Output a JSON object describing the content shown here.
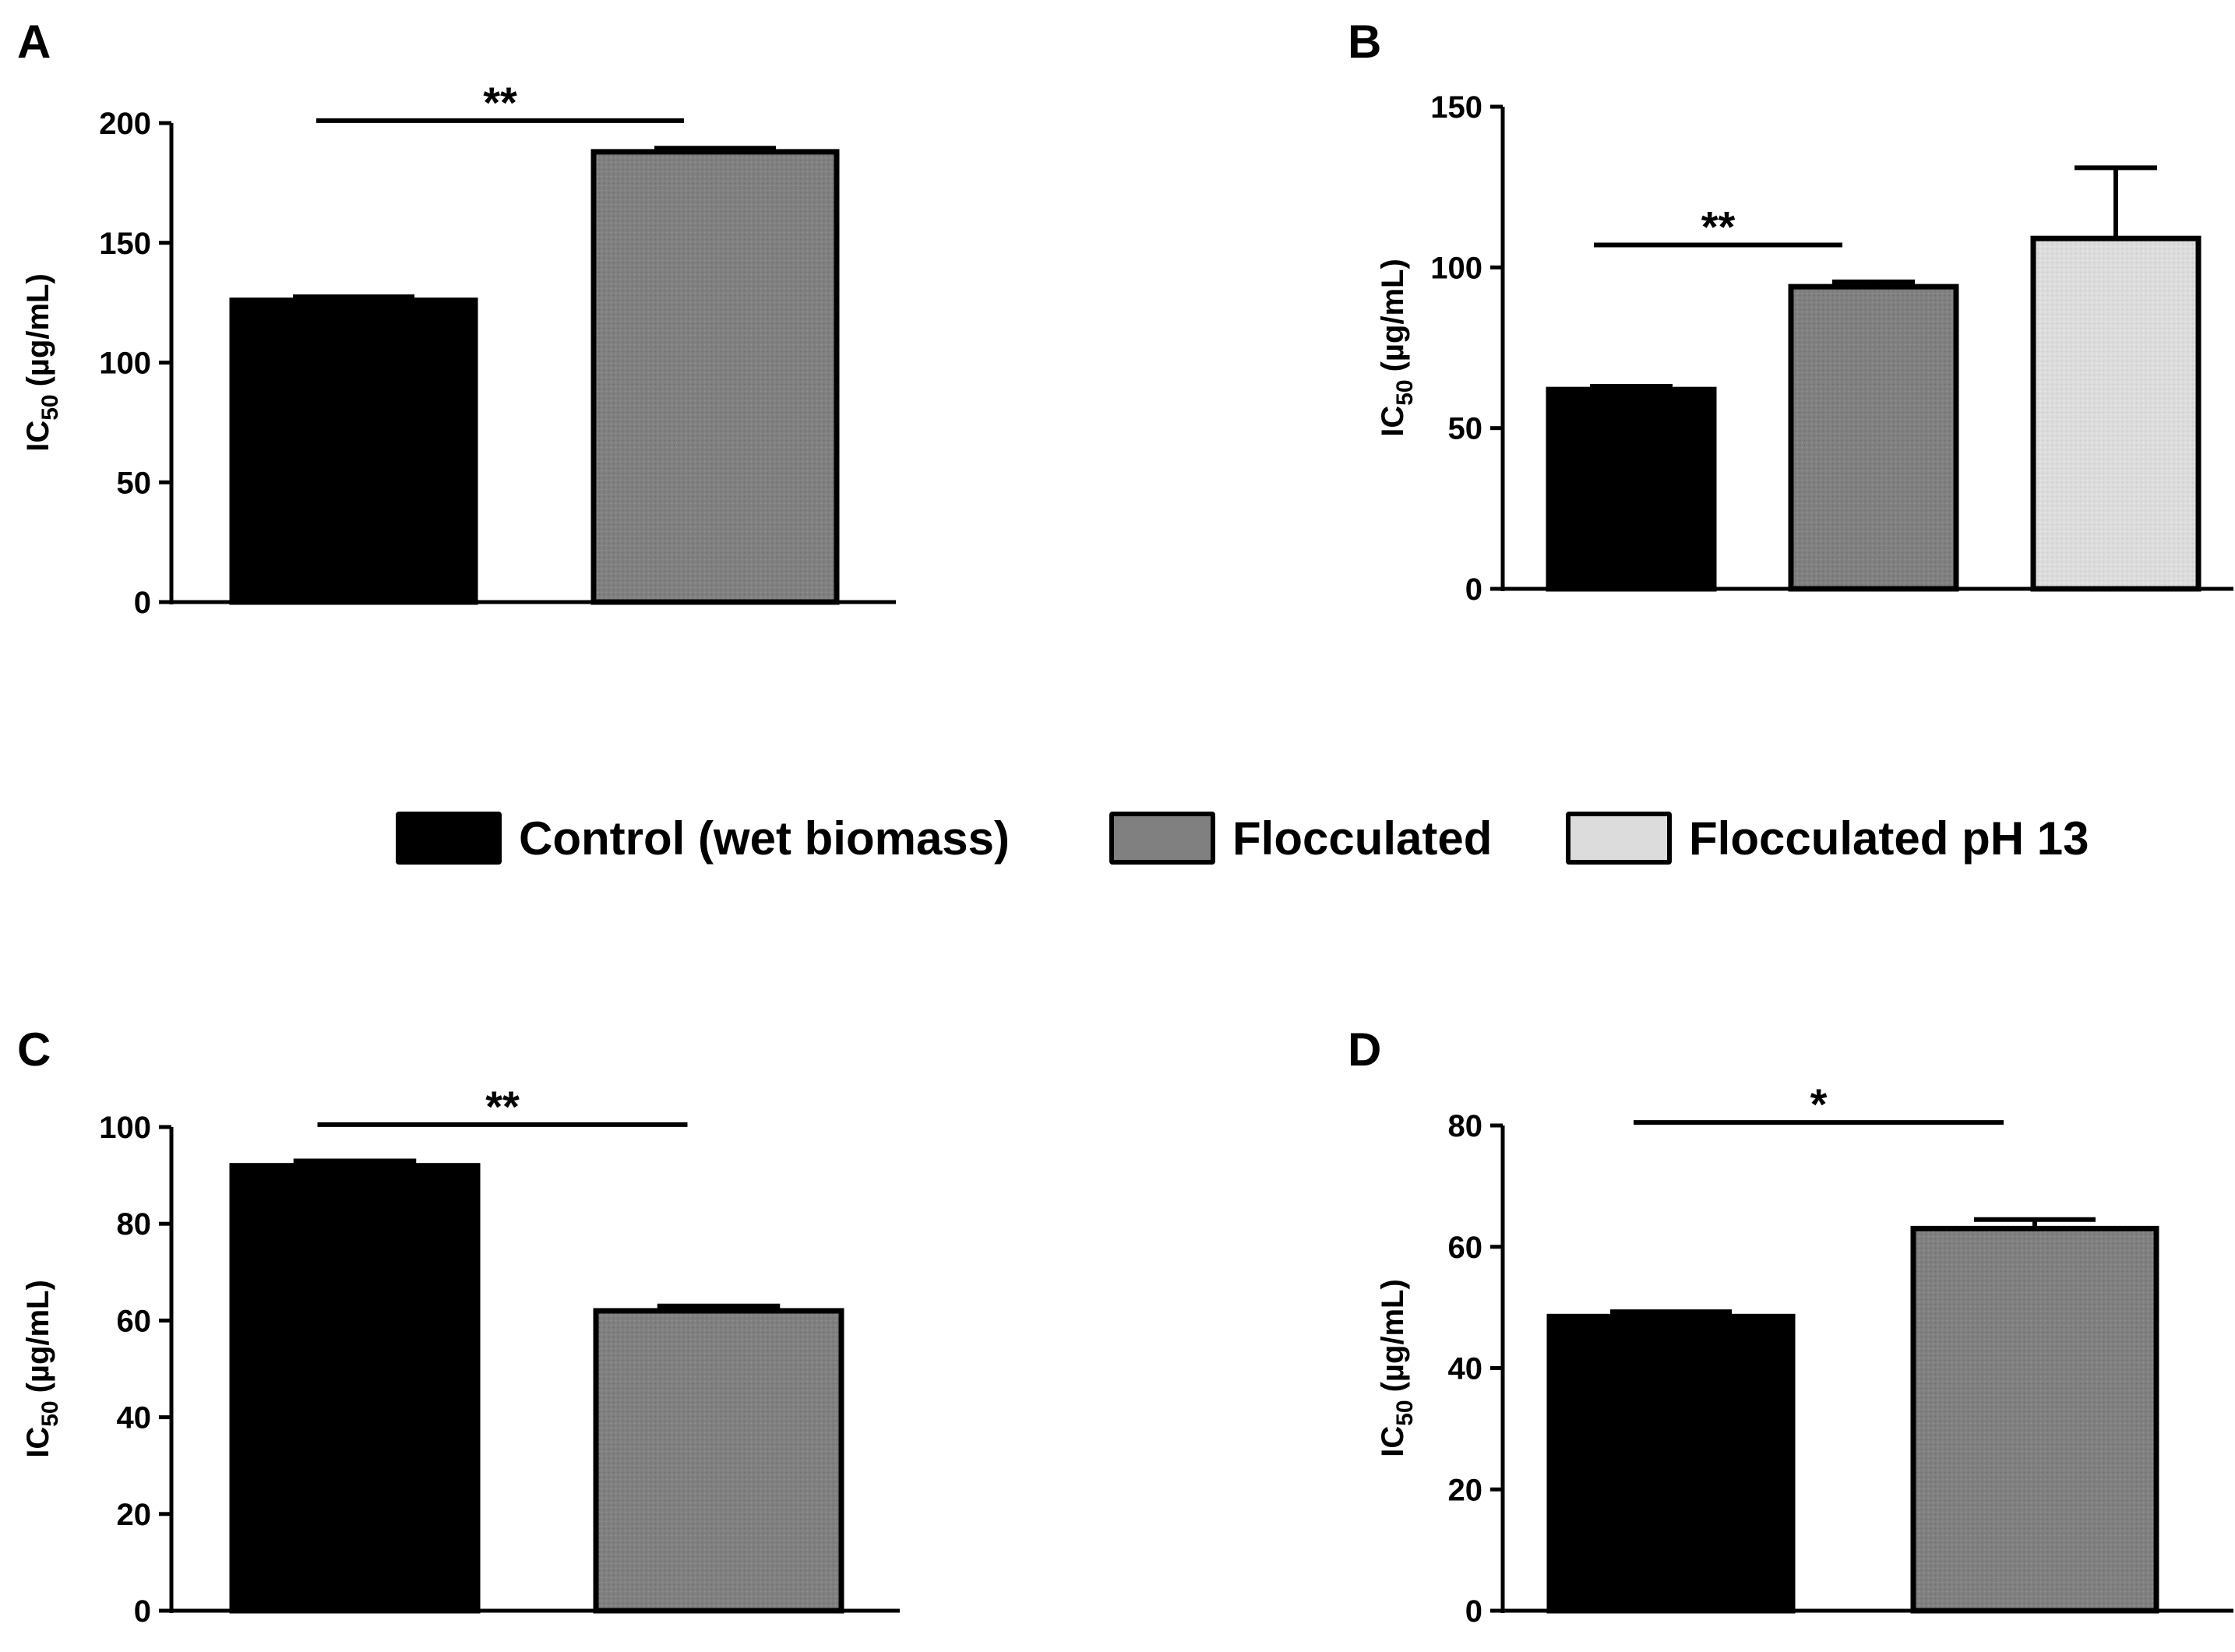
{
  "figure": {
    "legend": [
      {
        "label": "Control (wet biomass)",
        "fill": "#000000"
      },
      {
        "label": "Flocculated",
        "fill": "#808080"
      },
      {
        "label": "Flocculated pH 13",
        "fill": "#dcdcdc"
      }
    ]
  },
  "chart_data": [
    {
      "panel": "A",
      "type": "bar",
      "categories": [
        "Control (wet biomass)",
        "Flocculated"
      ],
      "values": [
        126,
        188
      ],
      "errors": [
        1.5,
        1.5
      ],
      "ylabel_main": "IC",
      "ylabel_sub": "50",
      "ylabel_unit": "(µg/mL)",
      "ylim": [
        0,
        200
      ],
      "yticks": [
        0,
        50,
        100,
        150,
        200
      ],
      "ytick_labels": [
        "0",
        "50",
        "100",
        "150",
        "200"
      ],
      "grid": false,
      "significance": [
        {
          "from": 0,
          "to": 1,
          "label": "**",
          "y": 201
        }
      ]
    },
    {
      "panel": "B",
      "type": "bar",
      "categories": [
        "Control (wet biomass)",
        "Flocculated",
        "Flocculated pH 13"
      ],
      "values": [
        62,
        94,
        109
      ],
      "errors": [
        1.0,
        1.5,
        22
      ],
      "ylabel_main": "IC",
      "ylabel_sub": "50",
      "ylabel_unit": "(µg/mL)",
      "ylim": [
        0,
        150
      ],
      "yticks": [
        0,
        50,
        100,
        150
      ],
      "ytick_labels": [
        "0",
        "50",
        "100",
        "150"
      ],
      "grid": false,
      "significance": [
        {
          "from": 0,
          "to": 1,
          "label": "**",
          "y": 107
        }
      ]
    },
    {
      "panel": "C",
      "type": "bar",
      "categories": [
        "Control (wet biomass)",
        "Flocculated"
      ],
      "values": [
        92,
        62
      ],
      "errors": [
        1.0,
        1.0
      ],
      "ylabel_main": "IC",
      "ylabel_sub": "50",
      "ylabel_unit": "(µg/mL)",
      "ylim": [
        0,
        100
      ],
      "yticks": [
        0,
        20,
        40,
        60,
        80,
        100
      ],
      "ytick_labels": [
        "0",
        "20",
        "40",
        "60",
        "80",
        "100"
      ],
      "grid": false,
      "significance": [
        {
          "from": 0,
          "to": 1,
          "label": "**",
          "y": 100.5
        }
      ]
    },
    {
      "panel": "D",
      "type": "bar",
      "categories": [
        "Control (wet biomass)",
        "Flocculated"
      ],
      "values": [
        48.5,
        63
      ],
      "errors": [
        0.8,
        1.5
      ],
      "ylabel_main": "IC",
      "ylabel_sub": "50",
      "ylabel_unit": "(µg/mL)",
      "ylim": [
        0,
        80
      ],
      "yticks": [
        0,
        20,
        40,
        60,
        80
      ],
      "ytick_labels": [
        "0",
        "20",
        "40",
        "60",
        "80"
      ],
      "grid": false,
      "significance": [
        {
          "from": 0,
          "to": 1,
          "label": "*",
          "y": 80.5
        }
      ]
    }
  ]
}
